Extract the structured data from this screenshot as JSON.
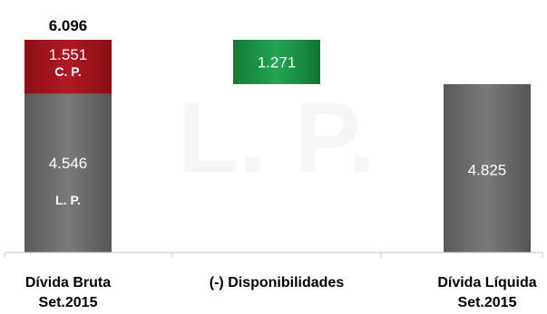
{
  "chart_data": {
    "type": "bar",
    "subtype": "waterfall",
    "categories": [
      [
        "Dívida Bruta",
        "Set.2015"
      ],
      [
        "(-) Disponibilidades"
      ],
      [
        "Dívida Líquida",
        "Set.2015"
      ]
    ],
    "bars": [
      {
        "category_index": 0,
        "total": 6.096,
        "total_label": "6.096",
        "segments": [
          {
            "value": 4.546,
            "label": "4.546",
            "tag": "L. P.",
            "color": "#6e6e6e"
          },
          {
            "value": 1.551,
            "label": "1.551",
            "tag": "C. P.",
            "color": "#a1141c"
          }
        ]
      },
      {
        "category_index": 1,
        "floating": true,
        "segments": [
          {
            "value": 1.271,
            "label": "1.271",
            "color": "#1e9446"
          }
        ]
      },
      {
        "category_index": 2,
        "segments": [
          {
            "value": 4.825,
            "label": "4.825",
            "color": "#6e6e6e"
          }
        ]
      }
    ],
    "watermark": "L. P.",
    "ylim": [
      0,
      6.3
    ],
    "grid": false,
    "legend": "none",
    "x_axis_line_color": "#c8c8c8"
  }
}
